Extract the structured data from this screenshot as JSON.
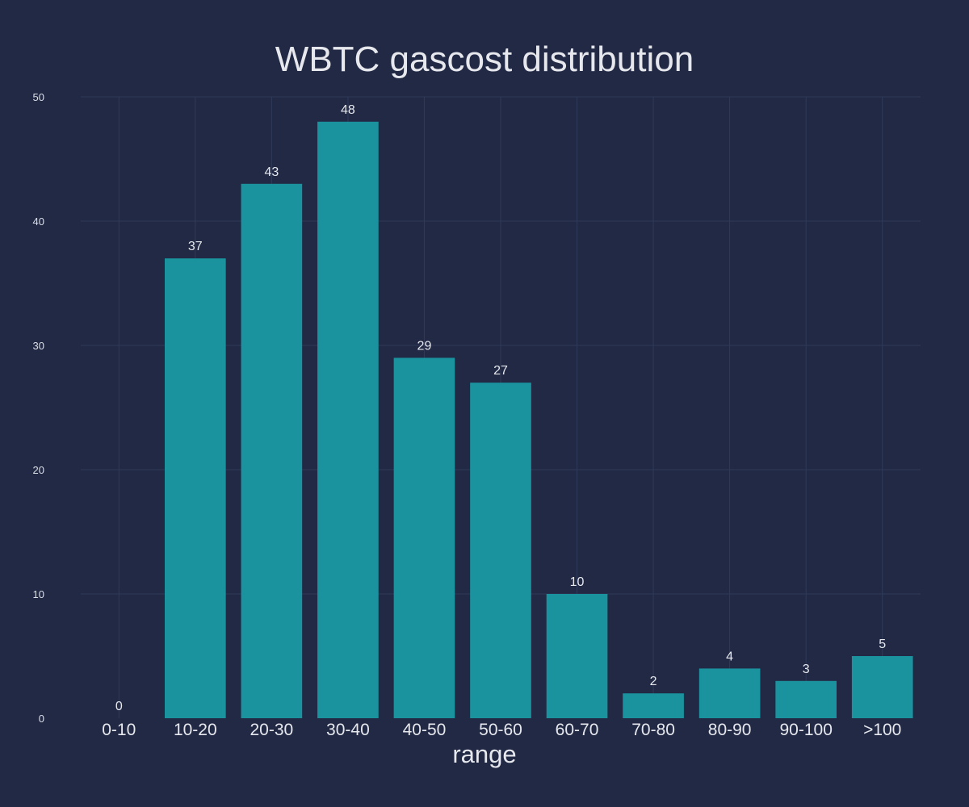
{
  "chart_data": {
    "type": "bar",
    "title": "WBTC gascost distribution",
    "xlabel": "range",
    "ylabel": "",
    "categories": [
      "0-10",
      "10-20",
      "20-30",
      "30-40",
      "40-50",
      "50-60",
      "60-70",
      "70-80",
      "80-90",
      "90-100",
      ">100"
    ],
    "values": [
      0,
      37,
      43,
      48,
      29,
      27,
      10,
      2,
      4,
      3,
      5
    ],
    "data_labels": [
      "0",
      "37",
      "43",
      "48",
      "29",
      "27",
      "10",
      "2",
      "4",
      "3",
      "5"
    ],
    "ylim": [
      0,
      50
    ],
    "yticks": [
      0,
      10,
      20,
      30,
      40,
      50
    ],
    "ytick_labels": [
      "0",
      "10",
      "20",
      "30",
      "40",
      "50"
    ],
    "grid": true,
    "legend": "none",
    "colors": {
      "background": "#222944",
      "bar": "#1a939e",
      "grid": "#2f3a5a",
      "text": "#e6e8ee"
    }
  }
}
